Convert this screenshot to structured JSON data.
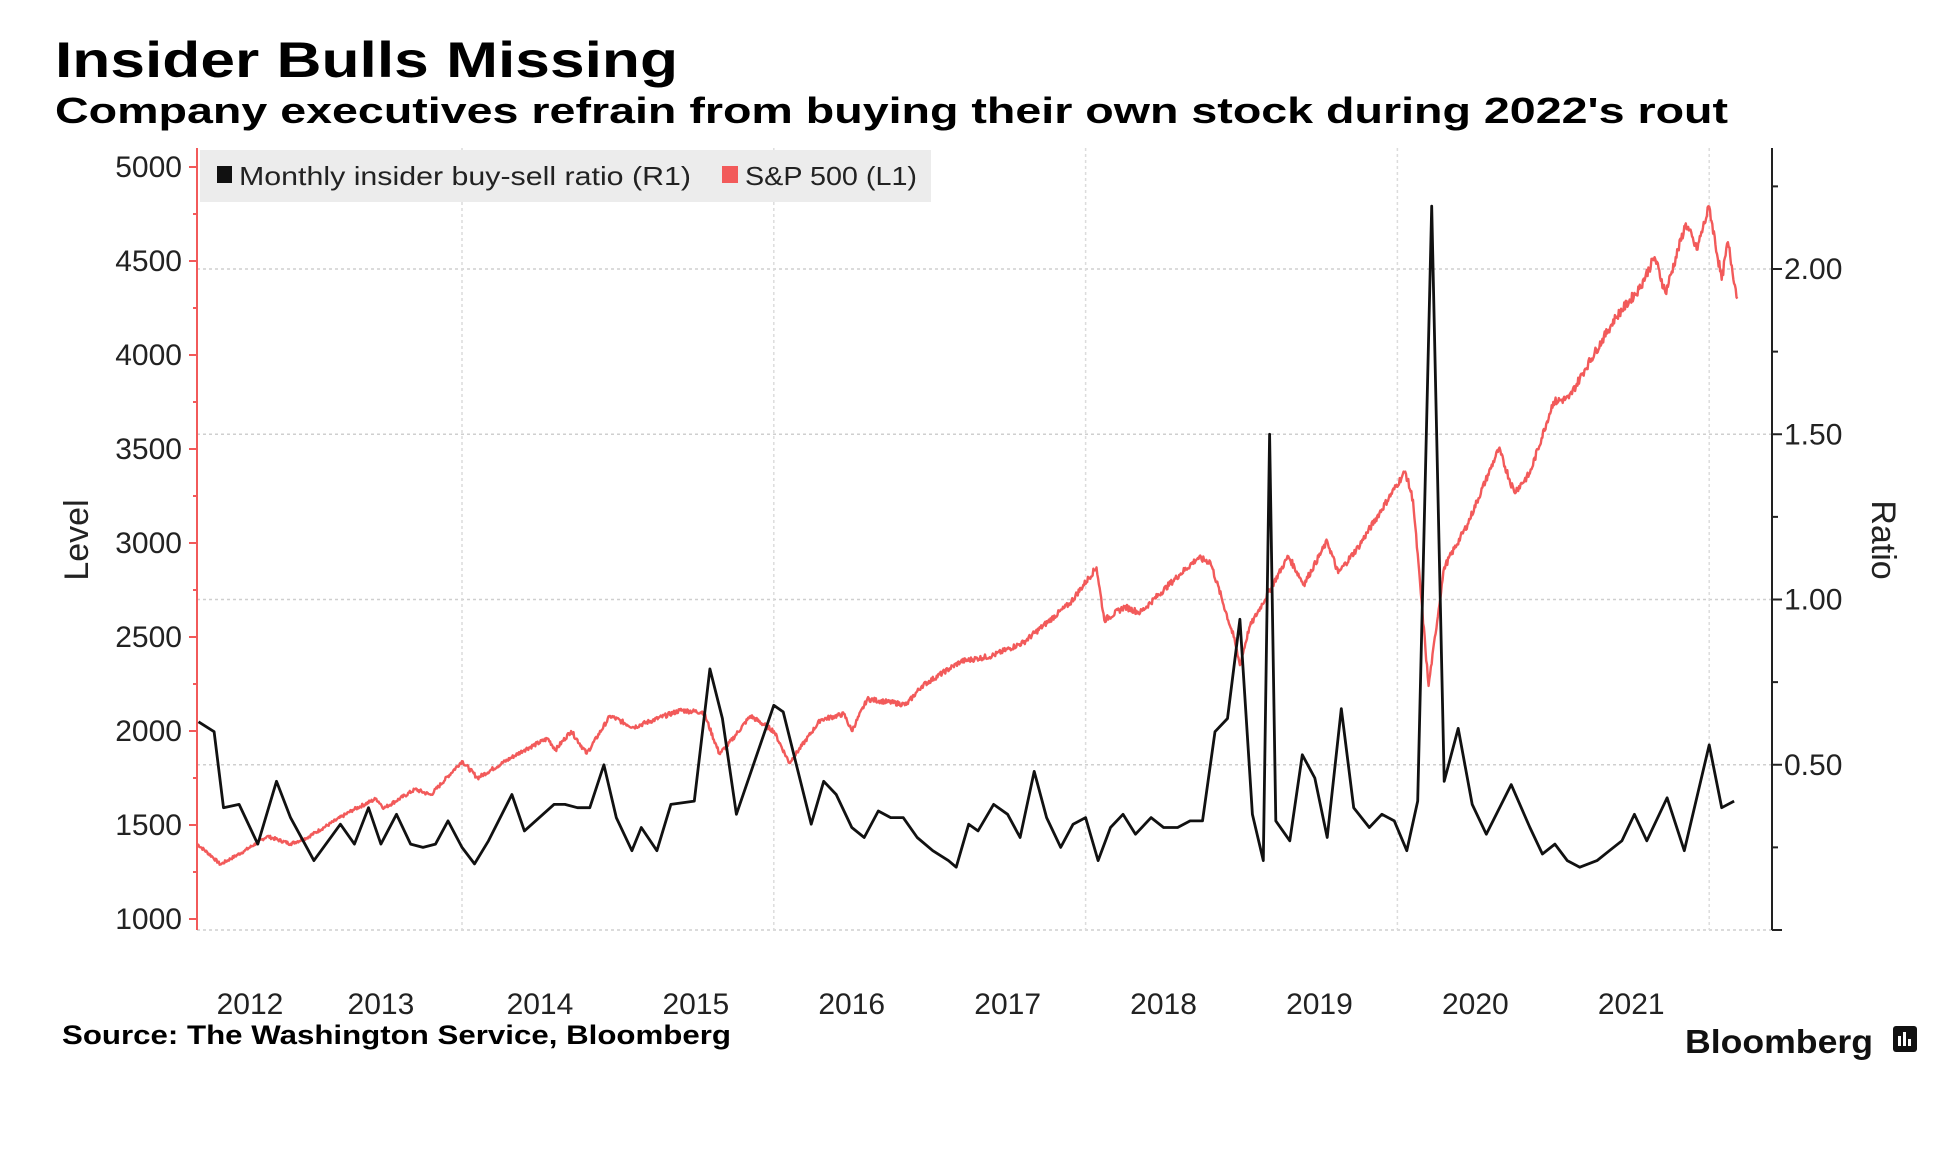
{
  "chart_data": {
    "type": "line",
    "title": "Insider Bulls Missing",
    "subtitle": "Company executives refrain from buying their own stock during 2022's rout",
    "source": "Source: The Washington Service, Bloomberg",
    "brand": "Bloomberg",
    "left_axis": {
      "label": "Level",
      "ylim": [
        1000,
        5000
      ],
      "ticks": [
        "1000",
        "1500",
        "2000",
        "2500",
        "3000",
        "3500",
        "4000",
        "4500",
        "5000"
      ],
      "color": "#f25a5a"
    },
    "right_axis": {
      "label": "Ratio",
      "ylim": [
        0,
        2.37
      ],
      "ticks": [
        "0.50",
        "1.00",
        "1.50",
        "2.00"
      ]
    },
    "x_axis": {
      "xlim": [
        2012.3,
        2022.35
      ],
      "ticks": [
        "2012",
        "2013",
        "2014",
        "2015",
        "2016",
        "2017",
        "2018",
        "2019",
        "2020",
        "2021"
      ],
      "tick_positions": [
        2012.64,
        2013.48,
        2014.5,
        2015.5,
        2016.5,
        2017.5,
        2018.5,
        2019.5,
        2020.5,
        2021.5
      ],
      "grid_years": [
        2014,
        2016,
        2018,
        2020,
        2022
      ]
    },
    "legend": {
      "placement": "top-left",
      "entries": [
        "Monthly insider buy-sell ratio (R1)",
        "S&P 500 (L1)"
      ]
    },
    "grid": true,
    "series": [
      {
        "name": "Monthly insider buy-sell ratio (R1)",
        "axis": "right",
        "color": "#111111",
        "points": [
          [
            2012.31,
            0.63
          ],
          [
            2012.41,
            0.6
          ],
          [
            2012.47,
            0.37
          ],
          [
            2012.57,
            0.38
          ],
          [
            2012.69,
            0.26
          ],
          [
            2012.81,
            0.45
          ],
          [
            2012.9,
            0.34
          ],
          [
            2013.05,
            0.21
          ],
          [
            2013.22,
            0.32
          ],
          [
            2013.31,
            0.26
          ],
          [
            2013.4,
            0.37
          ],
          [
            2013.48,
            0.26
          ],
          [
            2013.58,
            0.35
          ],
          [
            2013.67,
            0.26
          ],
          [
            2013.75,
            0.25
          ],
          [
            2013.83,
            0.26
          ],
          [
            2013.91,
            0.33
          ],
          [
            2014.0,
            0.25
          ],
          [
            2014.08,
            0.2
          ],
          [
            2014.17,
            0.27
          ],
          [
            2014.32,
            0.41
          ],
          [
            2014.4,
            0.3
          ],
          [
            2014.59,
            0.38
          ],
          [
            2014.66,
            0.38
          ],
          [
            2014.74,
            0.37
          ],
          [
            2014.82,
            0.37
          ],
          [
            2014.91,
            0.5
          ],
          [
            2014.99,
            0.34
          ],
          [
            2015.09,
            0.24
          ],
          [
            2015.15,
            0.31
          ],
          [
            2015.25,
            0.24
          ],
          [
            2015.34,
            0.38
          ],
          [
            2015.49,
            0.39
          ],
          [
            2015.59,
            0.79
          ],
          [
            2015.67,
            0.64
          ],
          [
            2015.76,
            0.35
          ],
          [
            2016.0,
            0.68
          ],
          [
            2016.06,
            0.66
          ],
          [
            2016.24,
            0.32
          ],
          [
            2016.32,
            0.45
          ],
          [
            2016.4,
            0.41
          ],
          [
            2016.5,
            0.31
          ],
          [
            2016.58,
            0.28
          ],
          [
            2016.67,
            0.36
          ],
          [
            2016.75,
            0.34
          ],
          [
            2016.83,
            0.34
          ],
          [
            2016.92,
            0.28
          ],
          [
            2017.02,
            0.24
          ],
          [
            2017.12,
            0.21
          ],
          [
            2017.17,
            0.19
          ],
          [
            2017.25,
            0.32
          ],
          [
            2017.31,
            0.3
          ],
          [
            2017.41,
            0.38
          ],
          [
            2017.5,
            0.35
          ],
          [
            2017.58,
            0.28
          ],
          [
            2017.67,
            0.48
          ],
          [
            2017.75,
            0.34
          ],
          [
            2017.84,
            0.25
          ],
          [
            2017.92,
            0.32
          ],
          [
            2018.0,
            0.34
          ],
          [
            2018.08,
            0.21
          ],
          [
            2018.16,
            0.31
          ],
          [
            2018.24,
            0.35
          ],
          [
            2018.32,
            0.29
          ],
          [
            2018.42,
            0.34
          ],
          [
            2018.5,
            0.31
          ],
          [
            2018.59,
            0.31
          ],
          [
            2018.67,
            0.33
          ],
          [
            2018.75,
            0.33
          ],
          [
            2018.83,
            0.6
          ],
          [
            2018.91,
            0.64
          ],
          [
            2018.99,
            0.94
          ],
          [
            2019.07,
            0.35
          ],
          [
            2019.14,
            0.21
          ],
          [
            2019.18,
            1.5
          ],
          [
            2019.22,
            0.33
          ],
          [
            2019.31,
            0.27
          ],
          [
            2019.39,
            0.53
          ],
          [
            2019.47,
            0.46
          ],
          [
            2019.55,
            0.28
          ],
          [
            2019.64,
            0.67
          ],
          [
            2019.72,
            0.37
          ],
          [
            2019.82,
            0.31
          ],
          [
            2019.9,
            0.35
          ],
          [
            2019.98,
            0.33
          ],
          [
            2020.06,
            0.24
          ],
          [
            2020.13,
            0.39
          ],
          [
            2020.22,
            2.19
          ],
          [
            2020.3,
            0.45
          ],
          [
            2020.39,
            0.61
          ],
          [
            2020.48,
            0.38
          ],
          [
            2020.57,
            0.29
          ],
          [
            2020.73,
            0.44
          ],
          [
            2020.85,
            0.31
          ],
          [
            2020.93,
            0.23
          ],
          [
            2021.01,
            0.26
          ],
          [
            2021.09,
            0.21
          ],
          [
            2021.17,
            0.19
          ],
          [
            2021.28,
            0.21
          ],
          [
            2021.36,
            0.24
          ],
          [
            2021.44,
            0.27
          ],
          [
            2021.52,
            0.35
          ],
          [
            2021.6,
            0.27
          ],
          [
            2021.73,
            0.4
          ],
          [
            2021.84,
            0.24
          ],
          [
            2022.0,
            0.56
          ],
          [
            2022.08,
            0.37
          ],
          [
            2022.16,
            0.39
          ]
        ]
      },
      {
        "name": "S&P 500 (L1)",
        "axis": "left",
        "color": "#f25a5a",
        "points": [
          [
            2012.3,
            1400
          ],
          [
            2012.4,
            1330
          ],
          [
            2012.45,
            1290
          ],
          [
            2012.6,
            1360
          ],
          [
            2012.75,
            1440
          ],
          [
            2012.9,
            1400
          ],
          [
            2013.0,
            1430
          ],
          [
            2013.3,
            1580
          ],
          [
            2013.45,
            1640
          ],
          [
            2013.5,
            1590
          ],
          [
            2013.7,
            1690
          ],
          [
            2013.8,
            1660
          ],
          [
            2014.0,
            1840
          ],
          [
            2014.1,
            1750
          ],
          [
            2014.4,
            1900
          ],
          [
            2014.55,
            1960
          ],
          [
            2014.6,
            1900
          ],
          [
            2014.7,
            2000
          ],
          [
            2014.8,
            1880
          ],
          [
            2014.95,
            2080
          ],
          [
            2015.1,
            2020
          ],
          [
            2015.4,
            2110
          ],
          [
            2015.55,
            2100
          ],
          [
            2015.65,
            1880
          ],
          [
            2015.7,
            1920
          ],
          [
            2015.85,
            2080
          ],
          [
            2016.0,
            2000
          ],
          [
            2016.1,
            1830
          ],
          [
            2016.3,
            2060
          ],
          [
            2016.45,
            2090
          ],
          [
            2016.5,
            2000
          ],
          [
            2016.6,
            2170
          ],
          [
            2016.85,
            2140
          ],
          [
            2016.95,
            2240
          ],
          [
            2017.2,
            2370
          ],
          [
            2017.4,
            2400
          ],
          [
            2017.6,
            2470
          ],
          [
            2017.9,
            2680
          ],
          [
            2018.07,
            2870
          ],
          [
            2018.12,
            2590
          ],
          [
            2018.25,
            2660
          ],
          [
            2018.35,
            2630
          ],
          [
            2018.6,
            2830
          ],
          [
            2018.72,
            2920
          ],
          [
            2018.8,
            2900
          ],
          [
            2018.95,
            2500
          ],
          [
            2018.99,
            2350
          ],
          [
            2019.05,
            2550
          ],
          [
            2019.3,
            2930
          ],
          [
            2019.4,
            2780
          ],
          [
            2019.55,
            3010
          ],
          [
            2019.62,
            2840
          ],
          [
            2019.75,
            2980
          ],
          [
            2020.05,
            3380
          ],
          [
            2020.1,
            3230
          ],
          [
            2020.2,
            2240
          ],
          [
            2020.3,
            2870
          ],
          [
            2020.45,
            3100
          ],
          [
            2020.65,
            3500
          ],
          [
            2020.75,
            3270
          ],
          [
            2020.85,
            3370
          ],
          [
            2021.0,
            3750
          ],
          [
            2021.1,
            3770
          ],
          [
            2021.2,
            3920
          ],
          [
            2021.4,
            4200
          ],
          [
            2021.55,
            4350
          ],
          [
            2021.65,
            4520
          ],
          [
            2021.72,
            4330
          ],
          [
            2021.85,
            4700
          ],
          [
            2021.92,
            4560
          ],
          [
            2022.0,
            4790
          ],
          [
            2022.08,
            4400
          ],
          [
            2022.12,
            4600
          ],
          [
            2022.18,
            4300
          ]
        ]
      }
    ]
  }
}
